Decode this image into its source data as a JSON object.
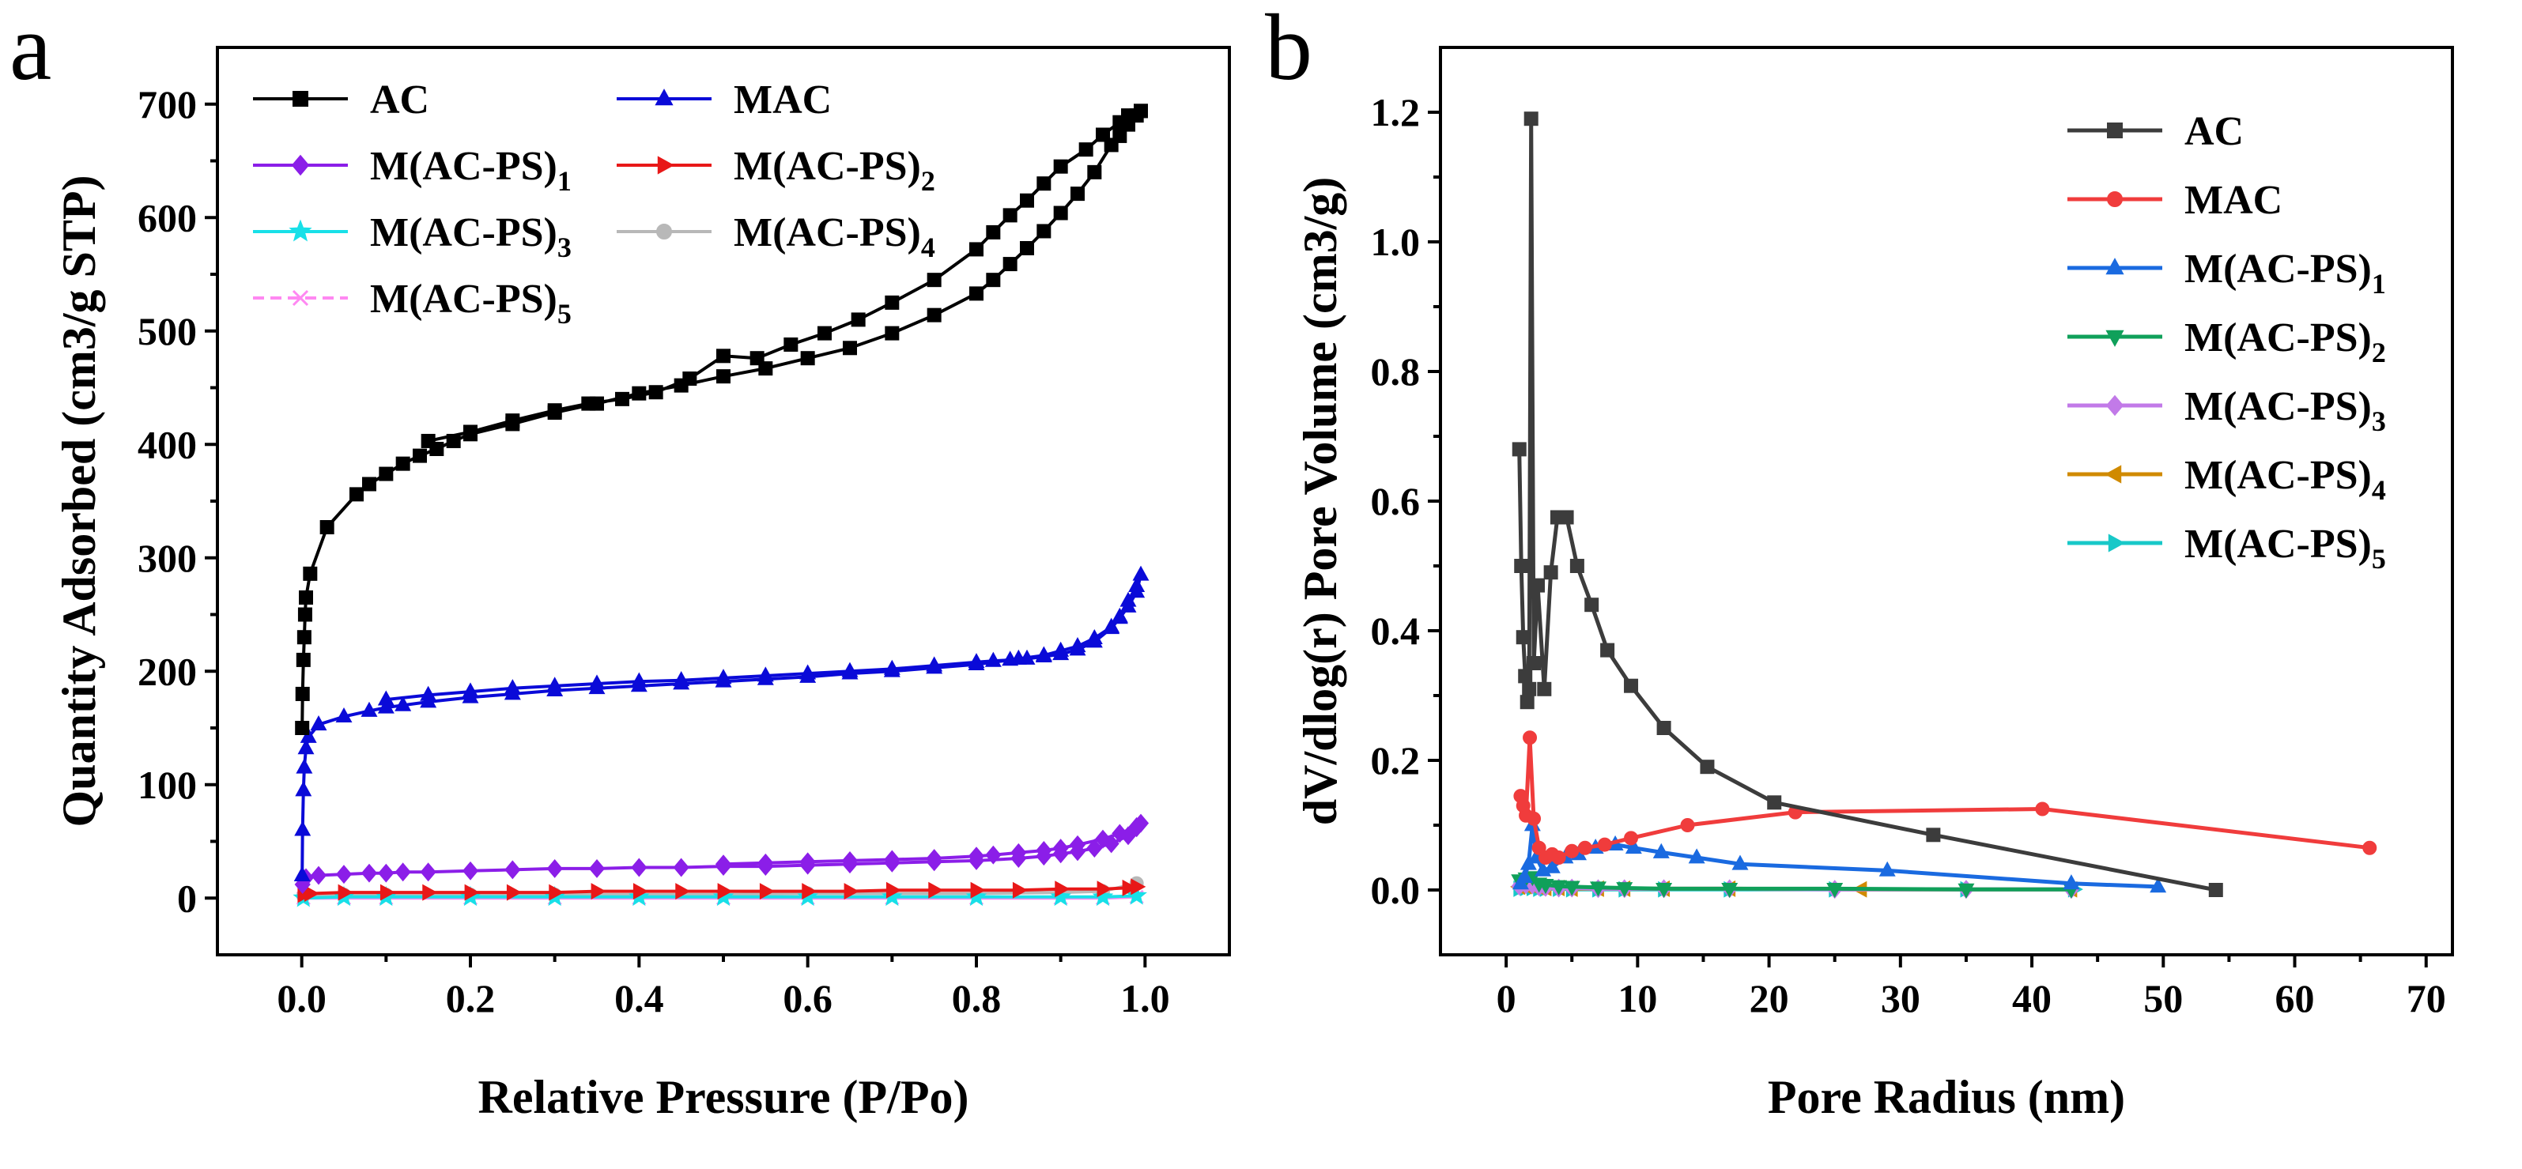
{
  "panels": {
    "a": {
      "letter": "a"
    },
    "b": {
      "letter": "b"
    }
  },
  "chart_data": [
    {
      "id": "a",
      "type": "line",
      "title": "",
      "xlabel": "Relative Pressure (P/Po)",
      "ylabel": "Quantity Adsorbed (cm3/g STP)",
      "xlim": [
        -0.1,
        1.1
      ],
      "ylim": [
        -50,
        750
      ],
      "xticks": [
        0.0,
        0.2,
        0.4,
        0.6,
        0.8,
        1.0
      ],
      "xtick_labels": [
        "0.0",
        "0.2",
        "0.4",
        "0.6",
        "0.8",
        "1.0"
      ],
      "yticks": [
        0,
        100,
        200,
        300,
        400,
        500,
        600,
        700
      ],
      "ytick_labels": [
        "0",
        "100",
        "200",
        "300",
        "400",
        "500",
        "600",
        "700"
      ],
      "legend": "top-left, two columns",
      "series": [
        {
          "name": "AC",
          "sub": "",
          "color": "#000000",
          "marker": "square",
          "x": [
            0.0005,
            0.001,
            0.002,
            0.003,
            0.004,
            0.005,
            0.01,
            0.03,
            0.065,
            0.08,
            0.1,
            0.12,
            0.14,
            0.16,
            0.18,
            0.2,
            0.25,
            0.3,
            0.35,
            0.4,
            0.45,
            0.5,
            0.55,
            0.6,
            0.65,
            0.7,
            0.75,
            0.8,
            0.82,
            0.84,
            0.86,
            0.88,
            0.9,
            0.92,
            0.94,
            0.96,
            0.97,
            0.98,
            0.99,
            0.995,
            0.995,
            0.98,
            0.97,
            0.95,
            0.93,
            0.9,
            0.88,
            0.86,
            0.84,
            0.82,
            0.8,
            0.75,
            0.7,
            0.66,
            0.62,
            0.58,
            0.54,
            0.5,
            0.46,
            0.42,
            0.38,
            0.34,
            0.3,
            0.25,
            0.2,
            0.15
          ],
          "y": [
            150,
            180,
            210,
            230,
            250,
            265,
            286,
            327,
            356,
            365,
            374,
            383,
            390,
            396,
            403,
            409,
            418,
            428,
            436,
            445,
            452,
            460,
            467,
            476,
            485,
            498,
            514,
            533,
            545,
            559,
            573,
            588,
            604,
            621,
            640,
            664,
            672,
            682,
            690,
            694,
            694,
            690,
            684,
            673,
            660,
            645,
            630,
            615,
            602,
            587,
            572,
            545,
            525,
            510,
            498,
            488,
            476,
            478,
            458,
            446,
            440,
            436,
            430,
            421,
            411,
            403
          ]
        },
        {
          "name": "MAC",
          "sub": "",
          "color": "#0a0ad8",
          "marker": "triangle",
          "x": [
            0.0005,
            0.001,
            0.002,
            0.003,
            0.005,
            0.008,
            0.02,
            0.05,
            0.08,
            0.1,
            0.12,
            0.15,
            0.2,
            0.25,
            0.3,
            0.35,
            0.4,
            0.45,
            0.5,
            0.55,
            0.6,
            0.65,
            0.7,
            0.75,
            0.8,
            0.85,
            0.88,
            0.9,
            0.92,
            0.94,
            0.96,
            0.97,
            0.98,
            0.99,
            0.995,
            0.99,
            0.98,
            0.97,
            0.96,
            0.94,
            0.92,
            0.9,
            0.88,
            0.86,
            0.84,
            0.82,
            0.8,
            0.75,
            0.7,
            0.65,
            0.6,
            0.55,
            0.5,
            0.45,
            0.4,
            0.35,
            0.3,
            0.25,
            0.2,
            0.15,
            0.1
          ],
          "y": [
            20,
            60,
            95,
            115,
            132,
            142,
            153,
            160,
            165,
            168,
            170,
            173,
            177,
            180,
            183,
            185,
            187,
            189,
            191,
            193,
            195,
            198,
            200,
            203,
            206,
            211,
            214,
            218,
            222,
            229,
            239,
            248,
            262,
            275,
            285,
            270,
            257,
            247,
            238,
            226,
            219,
            215,
            213,
            211,
            210,
            209,
            208,
            205,
            202,
            200,
            198,
            196,
            194,
            192,
            191,
            189,
            187,
            185,
            182,
            179,
            175
          ]
        },
        {
          "name": "M(AC-PS)",
          "sub": "1",
          "color": "#8b1ee8",
          "marker": "diamond",
          "x": [
            0.001,
            0.005,
            0.02,
            0.05,
            0.08,
            0.1,
            0.12,
            0.15,
            0.2,
            0.25,
            0.3,
            0.35,
            0.4,
            0.45,
            0.5,
            0.55,
            0.6,
            0.65,
            0.7,
            0.75,
            0.8,
            0.85,
            0.88,
            0.9,
            0.92,
            0.94,
            0.96,
            0.98,
            0.99,
            0.995,
            0.99,
            0.97,
            0.95,
            0.92,
            0.9,
            0.88,
            0.85,
            0.82,
            0.8,
            0.75,
            0.7,
            0.65,
            0.6,
            0.55,
            0.5
          ],
          "y": [
            12,
            18,
            20,
            21,
            22,
            22,
            23,
            23,
            24,
            25,
            26,
            26,
            27,
            27,
            28,
            28,
            29,
            30,
            31,
            32,
            33,
            35,
            37,
            39,
            41,
            44,
            48,
            55,
            62,
            66,
            63,
            57,
            52,
            47,
            44,
            42,
            40,
            38,
            37,
            35,
            34,
            33,
            32,
            31,
            30
          ]
        },
        {
          "name": "M(AC-PS)",
          "sub": "2",
          "color": "#e81818",
          "marker": "right-triangle",
          "x": [
            0.002,
            0.01,
            0.05,
            0.1,
            0.15,
            0.2,
            0.25,
            0.3,
            0.35,
            0.4,
            0.45,
            0.5,
            0.55,
            0.6,
            0.65,
            0.7,
            0.75,
            0.8,
            0.85,
            0.9,
            0.95,
            0.98,
            0.99
          ],
          "y": [
            3,
            4,
            5,
            5,
            5,
            5,
            5,
            5,
            6,
            6,
            6,
            6,
            6,
            6,
            6,
            7,
            7,
            7,
            7,
            8,
            8,
            9,
            10
          ]
        },
        {
          "name": "M(AC-PS)",
          "sub": "3",
          "color": "#18e0e8",
          "marker": "star",
          "x": [
            0.002,
            0.05,
            0.1,
            0.2,
            0.3,
            0.4,
            0.5,
            0.6,
            0.7,
            0.8,
            0.9,
            0.95,
            0.99
          ],
          "y": [
            0,
            1,
            1,
            1,
            1,
            1,
            1,
            1,
            1,
            1,
            1,
            1,
            2
          ]
        },
        {
          "name": "M(AC-PS)",
          "sub": "4",
          "color": "#b8b8b8",
          "marker": "circle",
          "x": [
            0.002,
            0.05,
            0.1,
            0.2,
            0.3,
            0.4,
            0.5,
            0.6,
            0.7,
            0.8,
            0.9,
            0.95,
            0.99
          ],
          "y": [
            2,
            3,
            3,
            3,
            3,
            3,
            3,
            4,
            4,
            4,
            5,
            6,
            13
          ]
        },
        {
          "name": "M(AC-PS)",
          "sub": "5",
          "color": "#ff88f2",
          "marker": "x",
          "x": [
            0.002,
            0.05,
            0.1,
            0.2,
            0.3,
            0.4,
            0.5,
            0.6,
            0.7,
            0.8,
            0.9,
            0.95,
            0.99
          ],
          "y": [
            0,
            0,
            0,
            0,
            0,
            0,
            0,
            0,
            0,
            0,
            0,
            0,
            1
          ]
        }
      ]
    },
    {
      "id": "b",
      "type": "line",
      "title": "",
      "xlabel": "Pore Radius (nm)",
      "ylabel": "dV/dlog(r) Pore Volume (cm3/g)",
      "xlim": [
        -5,
        72
      ],
      "ylim": [
        -0.1,
        1.3
      ],
      "xticks": [
        0,
        10,
        20,
        30,
        40,
        50,
        60,
        70
      ],
      "xtick_labels": [
        "0",
        "10",
        "20",
        "30",
        "40",
        "50",
        "60",
        "70"
      ],
      "yticks": [
        0.0,
        0.2,
        0.4,
        0.6,
        0.8,
        1.0,
        1.2
      ],
      "ytick_labels": [
        "0.0",
        "0.2",
        "0.4",
        "0.6",
        "0.8",
        "1.0",
        "1.2"
      ],
      "legend": "top-right",
      "series": [
        {
          "name": "AC",
          "sub": "",
          "color": "#3c3c3c",
          "marker": "square",
          "x": [
            1.0,
            1.15,
            1.3,
            1.45,
            1.6,
            1.75,
            1.9,
            2.1,
            2.4,
            2.9,
            3.4,
            3.9,
            4.6,
            5.4,
            6.5,
            7.7,
            9.5,
            12.0,
            15.3,
            20.4,
            32.5,
            54.0
          ],
          "y": [
            0.68,
            0.5,
            0.39,
            0.33,
            0.29,
            0.31,
            1.19,
            0.35,
            0.47,
            0.31,
            0.49,
            0.575,
            0.575,
            0.5,
            0.44,
            0.37,
            0.315,
            0.25,
            0.19,
            0.135,
            0.085,
            0.0
          ]
        },
        {
          "name": "MAC",
          "sub": "",
          "color": "#f03c3c",
          "marker": "circle",
          "x": [
            1.1,
            1.3,
            1.5,
            1.8,
            2.1,
            2.5,
            3.0,
            3.5,
            4.0,
            5.0,
            6.0,
            7.5,
            9.5,
            13.8,
            22.0,
            40.8,
            65.7
          ],
          "y": [
            0.145,
            0.13,
            0.115,
            0.235,
            0.11,
            0.065,
            0.05,
            0.055,
            0.05,
            0.06,
            0.065,
            0.07,
            0.08,
            0.1,
            0.12,
            0.125,
            0.065
          ]
        },
        {
          "name": "M(AC-PS)",
          "sub": "1",
          "color": "#1a6ae0",
          "marker": "triangle",
          "x": [
            1.1,
            1.4,
            1.7,
            2.0,
            2.3,
            2.8,
            3.5,
            4.5,
            5.5,
            6.8,
            8.3,
            9.7,
            11.8,
            14.5,
            17.8,
            29.0,
            43.0,
            49.6
          ],
          "y": [
            0.01,
            0.02,
            0.04,
            0.1,
            0.05,
            0.03,
            0.035,
            0.05,
            0.055,
            0.065,
            0.07,
            0.065,
            0.058,
            0.05,
            0.04,
            0.03,
            0.01,
            0.005
          ]
        },
        {
          "name": "M(AC-PS)",
          "sub": "2",
          "color": "#10a05a",
          "marker": "down-triangle",
          "x": [
            1.0,
            1.5,
            2.0,
            2.5,
            3.0,
            4.0,
            5.0,
            7.0,
            9.0,
            12.0,
            17.0,
            25.0,
            35.0,
            43.0
          ],
          "y": [
            0.015,
            0.018,
            0.02,
            0.01,
            0.008,
            0.006,
            0.005,
            0.004,
            0.003,
            0.002,
            0.002,
            0.002,
            0.001,
            0.001
          ]
        },
        {
          "name": "M(AC-PS)",
          "sub": "3",
          "color": "#c27ae8",
          "marker": "diamond",
          "x": [
            1.0,
            1.5,
            2.0,
            2.5,
            3.0,
            4.0,
            5.0,
            7.0,
            9.0,
            12.0,
            17.0,
            25.0,
            35.0,
            43.0
          ],
          "y": [
            0.006,
            0.008,
            0.008,
            0.005,
            0.004,
            0.003,
            0.003,
            0.002,
            0.002,
            0.002,
            0.002,
            0.001,
            0.001,
            0.001
          ]
        },
        {
          "name": "M(AC-PS)",
          "sub": "4",
          "color": "#d08a00",
          "marker": "left-triangle",
          "x": [
            1.0,
            1.5,
            2.0,
            2.5,
            3.0,
            4.0,
            5.0,
            7.0,
            9.0,
            12.0,
            17.0,
            27.0,
            43.0
          ],
          "y": [
            0.005,
            0.006,
            0.006,
            0.004,
            0.003,
            0.003,
            0.002,
            0.002,
            0.002,
            0.002,
            0.002,
            0.001,
            0.001
          ]
        },
        {
          "name": "M(AC-PS)",
          "sub": "5",
          "color": "#18c8c8",
          "marker": "right-triangle",
          "x": [
            1.0,
            1.5,
            2.0,
            2.5,
            3.0,
            4.0,
            5.0,
            7.0,
            9.0,
            12.0,
            17.0,
            25.0,
            35.0,
            43.2
          ],
          "y": [
            0.002,
            0.003,
            0.003,
            0.002,
            0.002,
            0.002,
            0.001,
            0.001,
            0.001,
            0.001,
            0.001,
            0.001,
            0.001,
            0.001
          ]
        }
      ]
    }
  ]
}
